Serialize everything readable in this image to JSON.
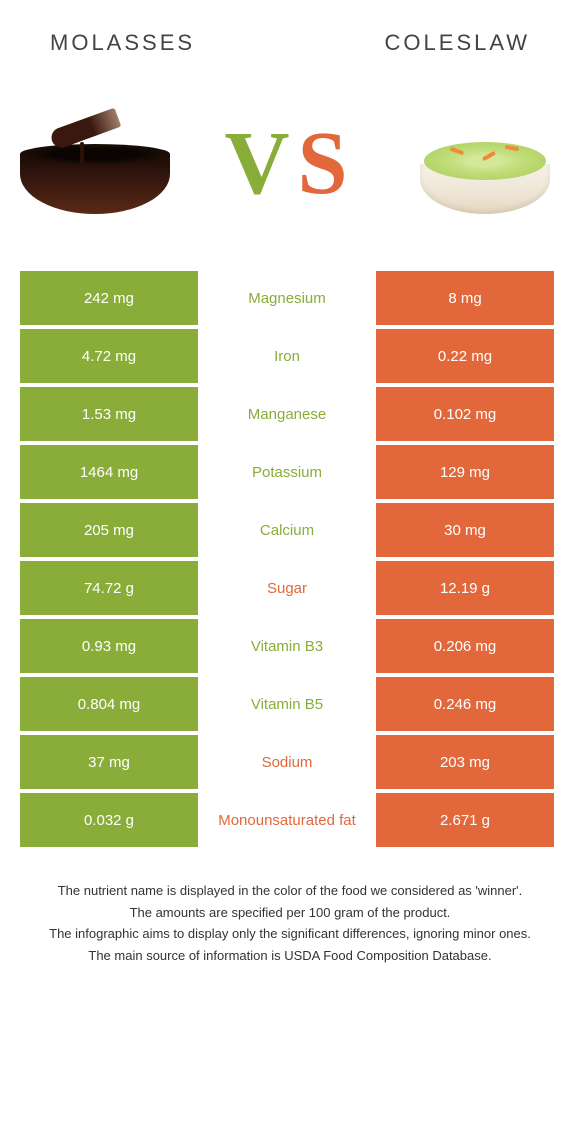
{
  "titles": {
    "left": "MOLASSES",
    "right": "COLESLAW"
  },
  "vs": {
    "v": "V",
    "s": "S"
  },
  "colors": {
    "left_bg": "#8aad3a",
    "right_bg": "#e2683c",
    "mid_left": "#8aad3a",
    "mid_right": "#e2683c"
  },
  "rows": [
    {
      "left": "242 mg",
      "mid": "Magnesium",
      "right": "8 mg",
      "winner": "left"
    },
    {
      "left": "4.72 mg",
      "mid": "Iron",
      "right": "0.22 mg",
      "winner": "left"
    },
    {
      "left": "1.53 mg",
      "mid": "Manganese",
      "right": "0.102 mg",
      "winner": "left"
    },
    {
      "left": "1464 mg",
      "mid": "Potassium",
      "right": "129 mg",
      "winner": "left"
    },
    {
      "left": "205 mg",
      "mid": "Calcium",
      "right": "30 mg",
      "winner": "left"
    },
    {
      "left": "74.72 g",
      "mid": "Sugar",
      "right": "12.19 g",
      "winner": "right"
    },
    {
      "left": "0.93 mg",
      "mid": "Vitamin B3",
      "right": "0.206 mg",
      "winner": "left"
    },
    {
      "left": "0.804 mg",
      "mid": "Vitamin B5",
      "right": "0.246 mg",
      "winner": "left"
    },
    {
      "left": "37 mg",
      "mid": "Sodium",
      "right": "203 mg",
      "winner": "right"
    },
    {
      "left": "0.032 g",
      "mid": "Monounsaturated fat",
      "right": "2.671 g",
      "winner": "right"
    }
  ],
  "footnotes": [
    "The nutrient name is displayed in the color of the food we considered as 'winner'.",
    "The amounts are specified per 100 gram of the product.",
    "The infographic aims to display only the significant differences, ignoring minor ones.",
    "The main source of information is USDA Food Composition Database."
  ]
}
